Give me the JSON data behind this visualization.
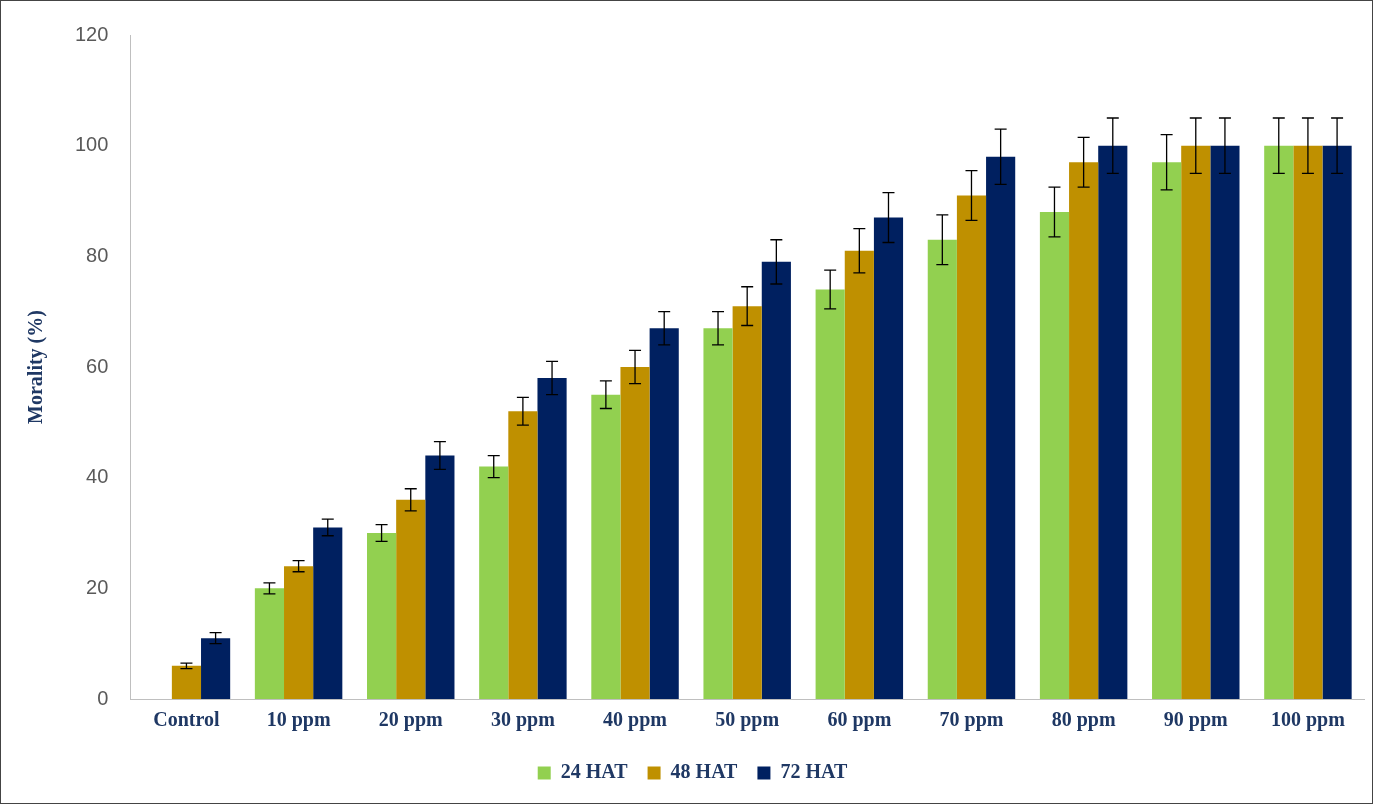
{
  "chart_data": {
    "type": "bar",
    "ylabel": "Morality (%)",
    "categories": [
      "Control",
      "10 ppm",
      "20 ppm",
      "30 ppm",
      "40 ppm",
      "50 ppm",
      "60 ppm",
      "70 ppm",
      "80 ppm",
      "90 ppm",
      "100 ppm"
    ],
    "series": [
      {
        "name": "24 HAT",
        "color": "#92d050",
        "values": [
          0,
          20,
          30,
          42,
          55,
          67,
          74,
          83,
          88,
          97,
          100
        ],
        "errors": [
          null,
          1,
          1.5,
          2,
          2.5,
          3,
          3.5,
          4.5,
          4.5,
          5,
          5
        ]
      },
      {
        "name": "48 HAT",
        "color": "#bf9000",
        "values": [
          6,
          24,
          36,
          52,
          60,
          71,
          81,
          91,
          97,
          100,
          100
        ],
        "errors": [
          0.5,
          1,
          2,
          2.5,
          3,
          3.5,
          4,
          4.5,
          4.5,
          5,
          5
        ]
      },
      {
        "name": "72 HAT",
        "color": "#002060",
        "values": [
          11,
          31,
          44,
          58,
          67,
          79,
          87,
          98,
          100,
          100,
          100
        ],
        "errors": [
          1,
          1.5,
          2.5,
          3,
          3,
          4,
          4.5,
          5,
          5,
          5,
          5
        ]
      }
    ],
    "ylim": [
      0,
      120
    ],
    "yticks": [
      0,
      20,
      40,
      60,
      80,
      100,
      120
    ],
    "legend": "bottom"
  }
}
